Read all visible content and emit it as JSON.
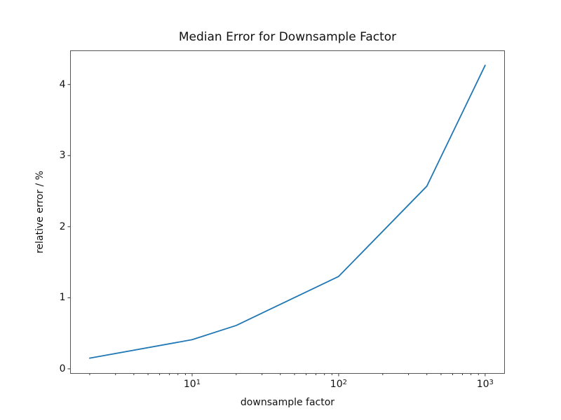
{
  "figure": {
    "title": "Median Error for Downsample Factor"
  },
  "chart_data": {
    "type": "line",
    "title": "Median Error for Downsample Factor",
    "xlabel": "downsample factor",
    "ylabel": "relative error / %",
    "xscale": "log",
    "yscale": "linear",
    "x": [
      2,
      10,
      20,
      100,
      400,
      1000
    ],
    "y": [
      0.15,
      0.41,
      0.61,
      1.3,
      2.57,
      4.27
    ],
    "xlim": [
      1.47,
      1364
    ],
    "ylim": [
      -0.07,
      4.48
    ],
    "yticks": [
      0,
      1,
      2,
      3,
      4
    ],
    "xticks_major": [
      10,
      100,
      1000
    ],
    "grid": false,
    "legend_position": null,
    "line_color": "#1f77b4",
    "spine_color": "#555555",
    "tick_color": "#333333",
    "text_color": "#111111"
  }
}
